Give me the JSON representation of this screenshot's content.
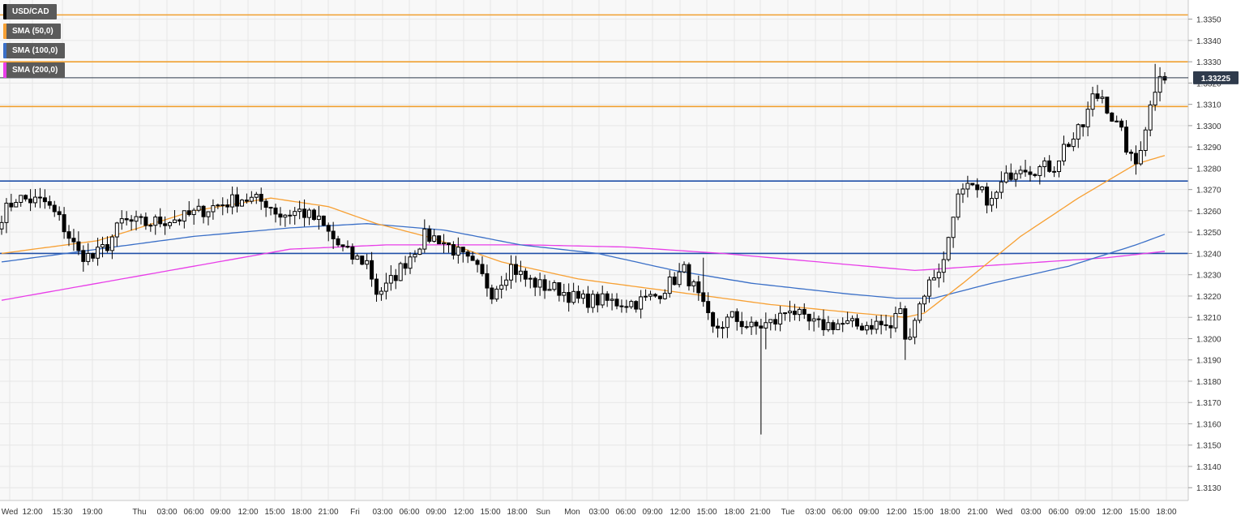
{
  "colors": {
    "background": "#f8f8f8",
    "grid": "#e6e6e6",
    "resistance": "#f0a030",
    "support": "#1f4fa8",
    "sma50": "#f7a033",
    "sma100": "#3a6fc7",
    "sma200": "#e83ee8",
    "candle_up": "#ffffff",
    "candle_down": "#000000",
    "price_tag": "#2f3b4c"
  },
  "legend": [
    {
      "label": "USD/CAD",
      "color": "#000000"
    },
    {
      "label": "SMA (50,0)",
      "color": "#f7a033"
    },
    {
      "label": "SMA (100,0)",
      "color": "#3a6fc7"
    },
    {
      "label": "SMA (200,0)",
      "color": "#e83ee8"
    }
  ],
  "chart_data": {
    "type": "candlestick",
    "symbol": "USD/CAD",
    "last_price": "1.33225",
    "ylim": [
      1.3124,
      1.3359
    ],
    "y_ticks": [
      "1.3130",
      "1.3140",
      "1.3150",
      "1.3160",
      "1.3170",
      "1.3180",
      "1.3190",
      "1.3200",
      "1.3210",
      "1.3220",
      "1.3230",
      "1.3240",
      "1.3250",
      "1.3260",
      "1.3270",
      "1.3280",
      "1.3290",
      "1.3300",
      "1.3310",
      "1.3320",
      "1.3330",
      "1.3340",
      "1.3350"
    ],
    "x_ticks": [
      "Wed",
      "12:00",
      "15:30",
      "19:00",
      "Thu",
      "03:00",
      "06:00",
      "09:00",
      "12:00",
      "15:00",
      "18:00",
      "21:00",
      "Fri",
      "03:00",
      "06:00",
      "09:00",
      "12:00",
      "15:00",
      "18:00",
      "Sun",
      "Mon",
      "03:00",
      "06:00",
      "09:00",
      "12:00",
      "15:00",
      "18:00",
      "21:00",
      "Tue",
      "03:00",
      "06:00",
      "09:00",
      "12:00",
      "15:00",
      "18:00",
      "21:00",
      "Wed",
      "03:00",
      "06:00",
      "09:00",
      "12:00",
      "15:00",
      "18:00"
    ],
    "horizontal_levels": {
      "resistance": [
        1.3352,
        1.333,
        1.3309
      ],
      "support": [
        1.3274,
        1.324
      ]
    },
    "price_anchors": [
      [
        0,
        1.3258
      ],
      [
        3,
        1.3266
      ],
      [
        9,
        1.3264
      ],
      [
        12,
        1.3256
      ],
      [
        14,
        1.3248
      ],
      [
        16,
        1.324
      ],
      [
        19,
        1.3238
      ],
      [
        22,
        1.3244
      ],
      [
        25,
        1.3255
      ],
      [
        30,
        1.3254
      ],
      [
        38,
        1.3257
      ],
      [
        44,
        1.3262
      ],
      [
        50,
        1.3266
      ],
      [
        55,
        1.3264
      ],
      [
        58,
        1.3258
      ],
      [
        62,
        1.326
      ],
      [
        66,
        1.3255
      ],
      [
        70,
        1.3244
      ],
      [
        73,
        1.3238
      ],
      [
        76,
        1.3236
      ],
      [
        78,
        1.3222
      ],
      [
        80,
        1.3224
      ],
      [
        84,
        1.3236
      ],
      [
        88,
        1.3248
      ],
      [
        91,
        1.3247
      ],
      [
        95,
        1.324
      ],
      [
        99,
        1.3232
      ],
      [
        102,
        1.3222
      ],
      [
        106,
        1.3234
      ],
      [
        109,
        1.3228
      ],
      [
        112,
        1.3225
      ],
      [
        116,
        1.3223
      ],
      [
        120,
        1.3218
      ],
      [
        124,
        1.3218
      ],
      [
        128,
        1.3217
      ],
      [
        132,
        1.3217
      ],
      [
        136,
        1.322
      ],
      [
        140,
        1.3228
      ],
      [
        142,
        1.3232
      ],
      [
        144,
        1.3224
      ],
      [
        146,
        1.3214
      ],
      [
        148,
        1.3204
      ],
      [
        152,
        1.321
      ],
      [
        156,
        1.3205
      ],
      [
        158,
        1.3206
      ],
      [
        161,
        1.3208
      ],
      [
        164,
        1.3215
      ],
      [
        167,
        1.3208
      ],
      [
        170,
        1.3206
      ],
      [
        174,
        1.3207
      ],
      [
        178,
        1.3206
      ],
      [
        182,
        1.3207
      ],
      [
        185,
        1.3205
      ],
      [
        187,
        1.3215
      ],
      [
        188,
        1.3198
      ],
      [
        190,
        1.321
      ],
      [
        192,
        1.3222
      ],
      [
        194,
        1.323
      ],
      [
        196,
        1.3236
      ],
      [
        198,
        1.326
      ],
      [
        199,
        1.3266
      ],
      [
        201,
        1.327
      ],
      [
        204,
        1.3268
      ],
      [
        206,
        1.3264
      ],
      [
        208,
        1.3272
      ],
      [
        210,
        1.3278
      ],
      [
        212,
        1.3282
      ],
      [
        214,
        1.328
      ],
      [
        216,
        1.328
      ],
      [
        219,
        1.3281
      ],
      [
        221,
        1.329
      ],
      [
        223,
        1.3294
      ],
      [
        225,
        1.33
      ],
      [
        227,
        1.3313
      ],
      [
        229,
        1.3314
      ],
      [
        231,
        1.3304
      ],
      [
        233,
        1.3296
      ],
      [
        235,
        1.3284
      ],
      [
        236,
        1.3282
      ],
      [
        238,
        1.33
      ],
      [
        240,
        1.3318
      ],
      [
        241,
        1.3326
      ],
      [
        242,
        1.3323
      ]
    ],
    "sma50_points": [
      [
        0,
        1.324
      ],
      [
        20,
        1.3246
      ],
      [
        40,
        1.326
      ],
      [
        56,
        1.3266
      ],
      [
        68,
        1.3262
      ],
      [
        78,
        1.3254
      ],
      [
        90,
        1.3247
      ],
      [
        104,
        1.3236
      ],
      [
        120,
        1.3228
      ],
      [
        140,
        1.3222
      ],
      [
        160,
        1.3216
      ],
      [
        178,
        1.3212
      ],
      [
        188,
        1.321
      ],
      [
        192,
        1.3212
      ],
      [
        200,
        1.3226
      ],
      [
        212,
        1.3248
      ],
      [
        224,
        1.3266
      ],
      [
        236,
        1.3282
      ],
      [
        242,
        1.3286
      ]
    ],
    "sma100_points": [
      [
        0,
        1.3236
      ],
      [
        20,
        1.3242
      ],
      [
        40,
        1.3248
      ],
      [
        60,
        1.3252
      ],
      [
        76,
        1.3254
      ],
      [
        92,
        1.3251
      ],
      [
        108,
        1.3244
      ],
      [
        124,
        1.324
      ],
      [
        140,
        1.3232
      ],
      [
        156,
        1.3226
      ],
      [
        176,
        1.3221
      ],
      [
        186,
        1.3219
      ],
      [
        194,
        1.3219
      ],
      [
        206,
        1.3226
      ],
      [
        222,
        1.3234
      ],
      [
        236,
        1.3244
      ],
      [
        242,
        1.3249
      ]
    ],
    "sma200_points": [
      [
        0,
        1.3218
      ],
      [
        30,
        1.323
      ],
      [
        60,
        1.3242
      ],
      [
        80,
        1.3244
      ],
      [
        110,
        1.3244
      ],
      [
        130,
        1.3243
      ],
      [
        150,
        1.324
      ],
      [
        170,
        1.3236
      ],
      [
        190,
        1.3232
      ],
      [
        210,
        1.3235
      ],
      [
        230,
        1.3238
      ],
      [
        242,
        1.3241
      ]
    ],
    "wick_extremes": [
      [
        2,
        1.3268
      ],
      [
        70,
        1.3248
      ],
      [
        88,
        1.3256
      ],
      [
        146,
        1.3238
      ],
      [
        158,
        1.3155
      ],
      [
        159,
        1.3195
      ],
      [
        188,
        1.319
      ],
      [
        240,
        1.3329
      ],
      [
        236,
        1.3277
      ]
    ]
  }
}
